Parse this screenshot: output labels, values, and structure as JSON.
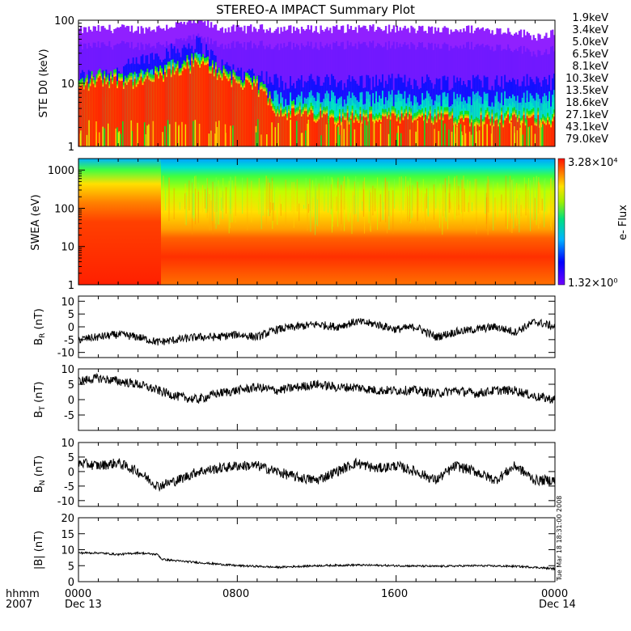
{
  "title": "STEREO-A IMPACT Summary Plot",
  "colors": {
    "ste_bands": [
      "#9020ff",
      "#7018ff",
      "#1010ff",
      "#00c8d8",
      "#00e8c0",
      "#10e020",
      "#80e000",
      "#e8e800",
      "#ffc000",
      "#ff7a00",
      "#ff2800"
    ],
    "trace": "#000000"
  },
  "footer": {
    "row1_label": "hhmm",
    "row2_label": "2007",
    "ticks": [
      {
        "time": "0000",
        "date": "Dec 13"
      },
      {
        "time": "0800",
        "date": ""
      },
      {
        "time": "1600",
        "date": ""
      },
      {
        "time": "0000",
        "date": "Dec 14"
      }
    ]
  },
  "timestamp": "Tue Mar 18 18:31:00 2008",
  "chart_data": [
    {
      "type": "area",
      "id": "ste",
      "ylabel": "STE D0 (keV)",
      "yscale": "log",
      "ylim": [
        1,
        100
      ],
      "yticks": [
        "1",
        "10",
        "100"
      ],
      "x_range_hours": [
        0,
        24
      ],
      "legend": [
        "1.9keV",
        "3.4keV",
        "5.0keV",
        "6.5keV",
        "8.1keV",
        "10.3keV",
        "13.5keV",
        "18.6keV",
        "27.1keV",
        "43.1keV",
        "79.0keV"
      ],
      "legend_placement": "right",
      "band_levels": {
        "x_hours": [
          0,
          1,
          2,
          3,
          4,
          5,
          6,
          7,
          8,
          9,
          10,
          12,
          14,
          16,
          18,
          20,
          22,
          23,
          24
        ],
        "top_band_keV": [
          65,
          68,
          70,
          68,
          70,
          80,
          90,
          70,
          68,
          70,
          68,
          68,
          70,
          68,
          66,
          68,
          62,
          52,
          60
        ],
        "blue_band_keV": [
          13,
          14,
          16,
          22,
          30,
          35,
          45,
          20,
          16,
          14,
          11,
          11,
          11,
          11,
          11,
          11,
          11,
          11,
          11
        ],
        "red_band_keV": [
          8,
          11,
          11,
          10,
          12,
          16,
          20,
          14,
          10,
          8,
          3.5,
          3,
          2.8,
          2.7,
          2.7,
          2.7,
          2.6,
          2.6,
          2.6
        ]
      }
    },
    {
      "type": "heatmap",
      "id": "swea",
      "ylabel": "SWEA (eV)",
      "yscale": "log",
      "ylim": [
        1,
        2000
      ],
      "yticks": [
        "1",
        "10",
        "100",
        "1000"
      ],
      "colorbar_label": "e- Flux",
      "colorbar_max": "3.28×10⁴",
      "colorbar_min": "1.32×10⁰",
      "x_range_hours": [
        0,
        24
      ],
      "features": {
        "enhanced_flux_end_hours": 4.2,
        "low_energy_red_below_eV": 20,
        "pre_boundary_red_below_eV": 200
      }
    },
    {
      "type": "line",
      "id": "br",
      "ylabel": "BR (nT)",
      "ylim": [
        -12,
        12
      ],
      "yticks": [
        "-10",
        "-5",
        "0",
        "5",
        "10"
      ],
      "x_hours": [
        0,
        1,
        2,
        3,
        4,
        5,
        6,
        7,
        8,
        9,
        10,
        11,
        12,
        13,
        14,
        15,
        16,
        17,
        18,
        19,
        20,
        21,
        22,
        23,
        24
      ],
      "values": [
        -5,
        -4,
        -3,
        -4,
        -6,
        -5,
        -4,
        -4,
        -3,
        -4,
        -1,
        0,
        1,
        0,
        2,
        1,
        -1,
        0,
        -4,
        -2,
        -1,
        0,
        -2,
        2,
        0
      ]
    },
    {
      "type": "line",
      "id": "bt",
      "ylabel": "BT (nT)",
      "ylim": [
        -10,
        10
      ],
      "yticks": [
        "-5",
        "0",
        "5",
        "10"
      ],
      "x_hours": [
        0,
        1,
        2,
        3,
        4,
        5,
        6,
        7,
        8,
        9,
        10,
        11,
        12,
        13,
        14,
        15,
        16,
        17,
        18,
        19,
        20,
        21,
        22,
        23,
        24
      ],
      "values": [
        6,
        7,
        6,
        5,
        3,
        1,
        0,
        2,
        3,
        4,
        3,
        4,
        5,
        4,
        4,
        3,
        3,
        3,
        2,
        3,
        2,
        3,
        3,
        1,
        0
      ]
    },
    {
      "type": "line",
      "id": "bn",
      "ylabel": "BN (nT)",
      "ylim": [
        -12,
        10
      ],
      "yticks": [
        "-10",
        "-5",
        "0",
        "5",
        "10"
      ],
      "x_hours": [
        0,
        1,
        2,
        3,
        4,
        5,
        6,
        7,
        8,
        9,
        10,
        11,
        12,
        13,
        14,
        15,
        16,
        17,
        18,
        19,
        20,
        21,
        22,
        23,
        24
      ],
      "values": [
        3,
        2,
        3,
        0,
        -5,
        -3,
        0,
        1,
        2,
        2,
        0,
        -2,
        -3,
        0,
        3,
        1,
        2,
        0,
        -3,
        2,
        0,
        -3,
        2,
        -3,
        -3
      ]
    },
    {
      "type": "line",
      "id": "bmag",
      "ylabel": "|B| (nT)",
      "ylim": [
        0,
        20
      ],
      "yticks": [
        "0",
        "5",
        "10",
        "15",
        "20"
      ],
      "x_hours": [
        0,
        1,
        2,
        3,
        4,
        4.2,
        5,
        6,
        7,
        8,
        9,
        10,
        12,
        14,
        16,
        18,
        20,
        22,
        23,
        24
      ],
      "values": [
        9,
        9,
        8.5,
        9,
        8.5,
        7,
        6.5,
        6,
        5.5,
        5,
        4.8,
        4.5,
        5,
        5.2,
        5,
        4.8,
        5,
        4.8,
        4.5,
        4
      ]
    }
  ]
}
